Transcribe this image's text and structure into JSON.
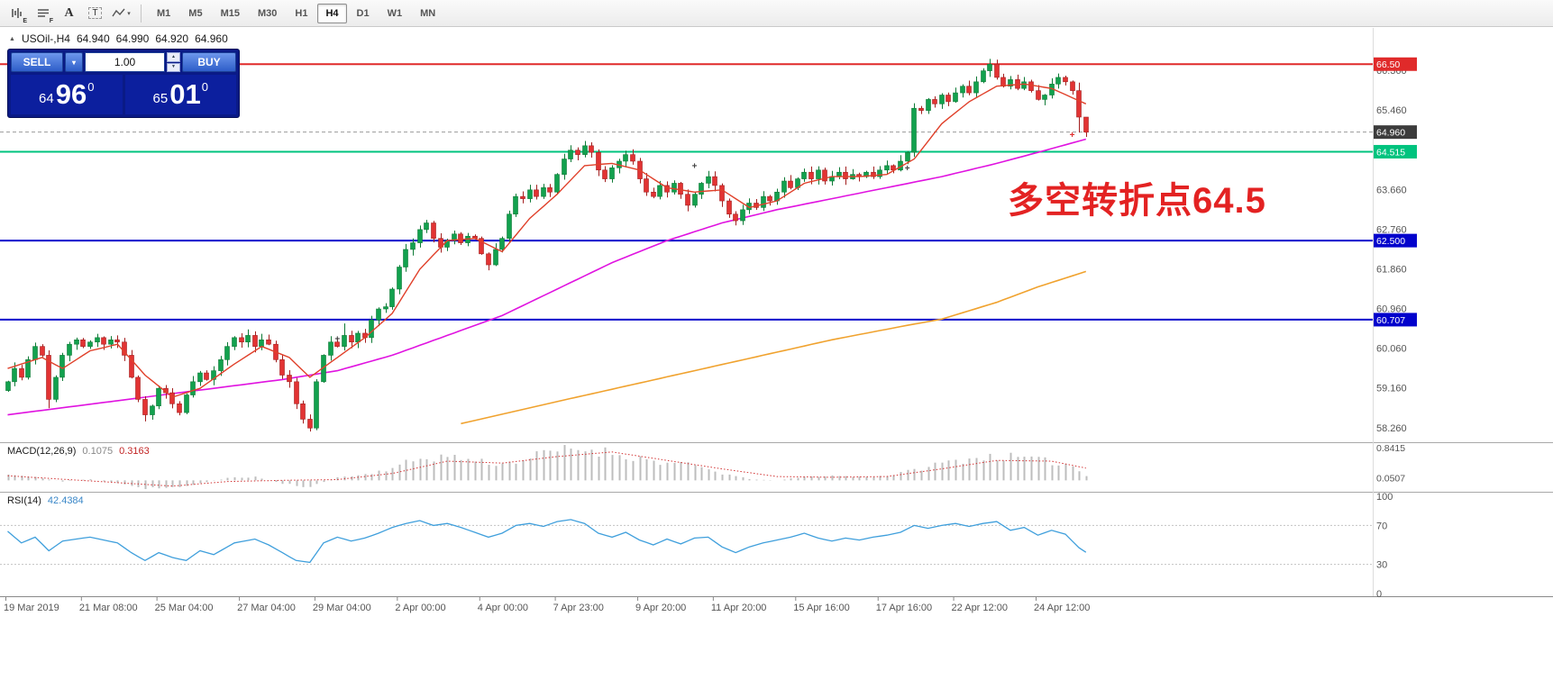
{
  "icons": {
    "collapse": "▲",
    "dropdown": "▾",
    "spin_up": "▲",
    "spin_down": "▼",
    "tool_caret": "▾"
  },
  "toolbar": {
    "tools": [
      {
        "name": "chart-window-icon",
        "kind": "bars",
        "sub": "E"
      },
      {
        "name": "data-window-icon",
        "kind": "lines",
        "sub": "F"
      },
      {
        "name": "text-tool-icon",
        "kind": "glyph",
        "glyph": "A"
      },
      {
        "name": "text-label-tool-icon",
        "kind": "boxed",
        "glyph": "T"
      },
      {
        "name": "drawing-tools-icon",
        "kind": "zigzag"
      }
    ],
    "timeframes": [
      {
        "label": "M1",
        "active": false
      },
      {
        "label": "M5",
        "active": false
      },
      {
        "label": "M15",
        "active": false
      },
      {
        "label": "M30",
        "active": false
      },
      {
        "label": "H1",
        "active": false
      },
      {
        "label": "H4",
        "active": true
      },
      {
        "label": "D1",
        "active": false
      },
      {
        "label": "W1",
        "active": false
      },
      {
        "label": "MN",
        "active": false
      }
    ]
  },
  "chart": {
    "header": {
      "symbol": "USOil-,H4",
      "open": "64.940",
      "high": "64.990",
      "low": "64.920",
      "close": "64.960"
    },
    "annotation": {
      "text": "多空转折点64.5",
      "color": "#e32222"
    },
    "trade_panel": {
      "sell_label": "SELL",
      "buy_label": "BUY",
      "volume": "1.00",
      "sell_price": {
        "small": "64",
        "big": "96",
        "sup": "0"
      },
      "buy_price": {
        "small": "65",
        "big": "01",
        "sup": "0"
      }
    },
    "axis": {
      "labels": [
        "66.360",
        "65.460",
        "63.660",
        "62.760",
        "61.860",
        "60.960",
        "60.060",
        "59.160",
        "58.260"
      ],
      "badges": [
        {
          "text": "66.50",
          "price": 66.5,
          "bg": "#e02a2a",
          "fg": "#ffffff"
        },
        {
          "text": "64.960",
          "price": 64.96,
          "bg": "#3c3c3c",
          "fg": "#ffffff"
        },
        {
          "text": "64.515",
          "price": 64.515,
          "bg": "#00c37e",
          "fg": "#ffffff"
        },
        {
          "text": "62.500",
          "price": 62.5,
          "bg": "#0202cc",
          "fg": "#ffffff"
        },
        {
          "text": "60.707",
          "price": 60.707,
          "bg": "#0202cc",
          "fg": "#ffffff"
        }
      ]
    },
    "hlines": [
      {
        "price": 66.5,
        "color": "#e02a2a",
        "width": 2
      },
      {
        "price": 64.515,
        "color": "#00c37e",
        "width": 2
      },
      {
        "price": 62.5,
        "color": "#0202cc",
        "width": 2
      },
      {
        "price": 60.707,
        "color": "#0202cc",
        "width": 2
      }
    ],
    "current_price": 64.96
  },
  "macd": {
    "label": "MACD(12,26,9)",
    "values": [
      "0.1075",
      "0.3163"
    ],
    "axis_labels": [
      {
        "text": "0.8415",
        "value": 0.8415
      },
      {
        "text": "0.0507",
        "value": 0.0507
      }
    ]
  },
  "rsi": {
    "label": "RSI(14)",
    "value": "42.4384",
    "axis_labels": [
      {
        "text": "100",
        "value": 100
      },
      {
        "text": "70",
        "value": 70
      },
      {
        "text": "30",
        "value": 30
      },
      {
        "text": "0",
        "value": 0
      }
    ],
    "levels": [
      70,
      30
    ]
  },
  "time_axis": [
    {
      "i": 0,
      "text": "19 Mar 2019"
    },
    {
      "i": 11,
      "text": "21 Mar 08:00"
    },
    {
      "i": 22,
      "text": "25 Mar 04:00"
    },
    {
      "i": 34,
      "text": "27 Mar 04:00"
    },
    {
      "i": 45,
      "text": "29 Mar 04:00"
    },
    {
      "i": 57,
      "text": "2 Apr 00:00"
    },
    {
      "i": 69,
      "text": "4 Apr 00:00"
    },
    {
      "i": 80,
      "text": "7 Apr 23:00"
    },
    {
      "i": 92,
      "text": "9 Apr 20:00"
    },
    {
      "i": 103,
      "text": "11 Apr 20:00"
    },
    {
      "i": 115,
      "text": "15 Apr 16:00"
    },
    {
      "i": 127,
      "text": "17 Apr 16:00"
    },
    {
      "i": 138,
      "text": "22 Apr 12:00"
    },
    {
      "i": 150,
      "text": "24 Apr 12:00"
    }
  ],
  "chart_data": {
    "type": "candlestick",
    "symbol": "USOil",
    "timeframe": "H4",
    "price_range": [
      58.0,
      66.75
    ],
    "first_open": 59.1,
    "closes": [
      59.3,
      59.6,
      59.4,
      59.8,
      60.1,
      59.9,
      58.9,
      59.4,
      59.9,
      60.15,
      60.25,
      60.1,
      60.2,
      60.3,
      60.15,
      60.25,
      60.2,
      59.9,
      59.4,
      58.9,
      58.55,
      58.75,
      59.15,
      59.05,
      58.8,
      58.6,
      59.0,
      59.3,
      59.5,
      59.35,
      59.55,
      59.8,
      60.1,
      60.3,
      60.2,
      60.35,
      60.1,
      60.25,
      60.15,
      59.8,
      59.45,
      59.3,
      58.8,
      58.45,
      58.25,
      59.3,
      59.9,
      60.2,
      60.1,
      60.35,
      60.2,
      60.4,
      60.3,
      60.7,
      60.95,
      61.0,
      61.4,
      61.9,
      62.3,
      62.45,
      62.75,
      62.9,
      62.55,
      62.35,
      62.5,
      62.65,
      62.45,
      62.6,
      62.55,
      62.2,
      61.95,
      62.3,
      62.55,
      63.1,
      63.5,
      63.45,
      63.65,
      63.5,
      63.7,
      63.6,
      64.0,
      64.35,
      64.55,
      64.45,
      64.65,
      64.5,
      64.1,
      63.9,
      64.15,
      64.3,
      64.45,
      64.3,
      63.9,
      63.6,
      63.5,
      63.75,
      63.6,
      63.8,
      63.55,
      63.3,
      63.55,
      63.8,
      63.95,
      63.75,
      63.4,
      63.1,
      62.95,
      63.2,
      63.35,
      63.25,
      63.5,
      63.4,
      63.6,
      63.85,
      63.7,
      63.9,
      64.05,
      63.9,
      64.1,
      63.85,
      63.95,
      64.05,
      63.9,
      64.0,
      63.95,
      64.05,
      63.95,
      64.1,
      64.2,
      64.1,
      64.3,
      64.5,
      65.5,
      65.45,
      65.7,
      65.6,
      65.8,
      65.65,
      65.85,
      66.0,
      65.85,
      66.1,
      66.35,
      66.5,
      66.2,
      66.0,
      66.15,
      65.95,
      66.1,
      65.9,
      65.7,
      65.8,
      66.05,
      66.2,
      66.1,
      65.9,
      65.3,
      64.96
    ],
    "wick_overrides": {
      "6": [
        null,
        58.7
      ],
      "20": [
        null,
        58.4
      ],
      "44": [
        null,
        58.17
      ],
      "49": [
        60.62,
        null
      ],
      "61": [
        62.97,
        null
      ],
      "84": [
        64.76,
        null
      ],
      "143": [
        66.62,
        null
      ],
      "156": [
        66.08,
        64.95
      ],
      "157": [
        65.1,
        64.85
      ]
    },
    "ma_fast": {
      "color": "#e0402a",
      "anchors": [
        [
          0,
          59.6
        ],
        [
          5,
          59.85
        ],
        [
          8,
          59.6
        ],
        [
          12,
          60.0
        ],
        [
          16,
          60.15
        ],
        [
          20,
          59.45
        ],
        [
          24,
          58.95
        ],
        [
          28,
          59.15
        ],
        [
          33,
          59.7
        ],
        [
          37,
          60.1
        ],
        [
          41,
          59.85
        ],
        [
          44,
          59.4
        ],
        [
          48,
          59.85
        ],
        [
          52,
          60.3
        ],
        [
          56,
          60.85
        ],
        [
          60,
          61.85
        ],
        [
          64,
          62.5
        ],
        [
          68,
          62.55
        ],
        [
          72,
          62.25
        ],
        [
          76,
          63.0
        ],
        [
          80,
          63.55
        ],
        [
          84,
          64.2
        ],
        [
          88,
          64.25
        ],
        [
          92,
          64.1
        ],
        [
          96,
          63.7
        ],
        [
          100,
          63.6
        ],
        [
          104,
          63.65
        ],
        [
          108,
          63.25
        ],
        [
          112,
          63.4
        ],
        [
          116,
          63.8
        ],
        [
          120,
          63.95
        ],
        [
          124,
          63.95
        ],
        [
          128,
          64.0
        ],
        [
          132,
          64.35
        ],
        [
          136,
          65.15
        ],
        [
          140,
          65.65
        ],
        [
          144,
          66.0
        ],
        [
          148,
          66.05
        ],
        [
          152,
          65.95
        ],
        [
          157,
          65.6
        ]
      ]
    },
    "ma_mid": {
      "color": "#e013e0",
      "anchors": [
        [
          0,
          58.55
        ],
        [
          10,
          58.75
        ],
        [
          20,
          58.95
        ],
        [
          30,
          59.15
        ],
        [
          40,
          59.35
        ],
        [
          48,
          59.55
        ],
        [
          56,
          59.9
        ],
        [
          64,
          60.35
        ],
        [
          72,
          60.8
        ],
        [
          80,
          61.4
        ],
        [
          88,
          62.0
        ],
        [
          96,
          62.5
        ],
        [
          104,
          62.9
        ],
        [
          112,
          63.2
        ],
        [
          120,
          63.45
        ],
        [
          128,
          63.7
        ],
        [
          136,
          63.95
        ],
        [
          144,
          64.25
        ],
        [
          150,
          64.5
        ],
        [
          157,
          64.8
        ]
      ]
    },
    "ma_slow": {
      "color": "#f0a22e",
      "anchors": [
        [
          66,
          58.35
        ],
        [
          80,
          58.85
        ],
        [
          90,
          59.2
        ],
        [
          100,
          59.55
        ],
        [
          110,
          59.9
        ],
        [
          120,
          60.25
        ],
        [
          130,
          60.55
        ],
        [
          136,
          60.72
        ],
        [
          144,
          61.1
        ],
        [
          150,
          61.45
        ],
        [
          157,
          61.8
        ]
      ]
    },
    "macd_hist_anchors": [
      [
        0,
        0.15
      ],
      [
        4,
        0.08
      ],
      [
        8,
        -0.03
      ],
      [
        12,
        0.03
      ],
      [
        16,
        -0.08
      ],
      [
        20,
        -0.22
      ],
      [
        24,
        -0.18
      ],
      [
        28,
        -0.08
      ],
      [
        32,
        0.06
      ],
      [
        36,
        0.09
      ],
      [
        40,
        -0.08
      ],
      [
        44,
        -0.18
      ],
      [
        48,
        0.08
      ],
      [
        52,
        0.15
      ],
      [
        56,
        0.33
      ],
      [
        60,
        0.57
      ],
      [
        64,
        0.63
      ],
      [
        68,
        0.52
      ],
      [
        72,
        0.42
      ],
      [
        76,
        0.6
      ],
      [
        80,
        0.78
      ],
      [
        84,
        0.82
      ],
      [
        88,
        0.72
      ],
      [
        92,
        0.57
      ],
      [
        96,
        0.45
      ],
      [
        100,
        0.38
      ],
      [
        104,
        0.18
      ],
      [
        108,
        0.03
      ],
      [
        112,
        0.0
      ],
      [
        116,
        0.09
      ],
      [
        120,
        0.12
      ],
      [
        124,
        0.09
      ],
      [
        128,
        0.12
      ],
      [
        132,
        0.27
      ],
      [
        136,
        0.45
      ],
      [
        140,
        0.57
      ],
      [
        144,
        0.63
      ],
      [
        148,
        0.57
      ],
      [
        152,
        0.48
      ],
      [
        155,
        0.38
      ],
      [
        157,
        0.11
      ]
    ],
    "macd_signal_anchors": [
      [
        0,
        0.12
      ],
      [
        8,
        0.03
      ],
      [
        16,
        -0.06
      ],
      [
        24,
        -0.15
      ],
      [
        32,
        -0.03
      ],
      [
        40,
        0.0
      ],
      [
        48,
        0.02
      ],
      [
        56,
        0.18
      ],
      [
        64,
        0.5
      ],
      [
        72,
        0.45
      ],
      [
        80,
        0.62
      ],
      [
        88,
        0.74
      ],
      [
        96,
        0.52
      ],
      [
        104,
        0.3
      ],
      [
        112,
        0.1
      ],
      [
        120,
        0.08
      ],
      [
        128,
        0.1
      ],
      [
        136,
        0.3
      ],
      [
        144,
        0.52
      ],
      [
        152,
        0.5
      ],
      [
        157,
        0.32
      ]
    ],
    "rsi_anchors": [
      [
        0,
        64
      ],
      [
        2,
        52
      ],
      [
        4,
        58
      ],
      [
        6,
        44
      ],
      [
        8,
        54
      ],
      [
        12,
        58
      ],
      [
        16,
        52
      ],
      [
        18,
        42
      ],
      [
        20,
        34
      ],
      [
        22,
        42
      ],
      [
        24,
        37
      ],
      [
        26,
        34
      ],
      [
        28,
        44
      ],
      [
        30,
        40
      ],
      [
        33,
        52
      ],
      [
        36,
        56
      ],
      [
        38,
        50
      ],
      [
        40,
        42
      ],
      [
        42,
        34
      ],
      [
        44,
        32
      ],
      [
        46,
        52
      ],
      [
        48,
        58
      ],
      [
        50,
        54
      ],
      [
        52,
        57
      ],
      [
        54,
        62
      ],
      [
        56,
        68
      ],
      [
        58,
        72
      ],
      [
        60,
        75
      ],
      [
        62,
        70
      ],
      [
        64,
        72
      ],
      [
        66,
        68
      ],
      [
        68,
        63
      ],
      [
        70,
        58
      ],
      [
        72,
        62
      ],
      [
        74,
        70
      ],
      [
        76,
        72
      ],
      [
        78,
        69
      ],
      [
        80,
        74
      ],
      [
        82,
        76
      ],
      [
        84,
        72
      ],
      [
        86,
        62
      ],
      [
        88,
        58
      ],
      [
        90,
        63
      ],
      [
        92,
        55
      ],
      [
        94,
        50
      ],
      [
        96,
        56
      ],
      [
        98,
        51
      ],
      [
        100,
        57
      ],
      [
        102,
        58
      ],
      [
        104,
        48
      ],
      [
        106,
        42
      ],
      [
        108,
        48
      ],
      [
        110,
        52
      ],
      [
        112,
        55
      ],
      [
        114,
        58
      ],
      [
        116,
        62
      ],
      [
        118,
        57
      ],
      [
        120,
        54
      ],
      [
        122,
        57
      ],
      [
        124,
        55
      ],
      [
        126,
        58
      ],
      [
        128,
        60
      ],
      [
        130,
        63
      ],
      [
        132,
        70
      ],
      [
        134,
        67
      ],
      [
        136,
        70
      ],
      [
        138,
        72
      ],
      [
        140,
        69
      ],
      [
        142,
        72
      ],
      [
        144,
        74
      ],
      [
        146,
        65
      ],
      [
        148,
        68
      ],
      [
        150,
        60
      ],
      [
        152,
        65
      ],
      [
        154,
        61
      ],
      [
        156,
        47
      ],
      [
        157,
        42.4
      ]
    ],
    "markers": [
      {
        "i": 48,
        "price": 60.28,
        "color": "#444444"
      },
      {
        "i": 100,
        "price": 64.2,
        "color": "#444444"
      },
      {
        "i": 131,
        "price": 64.15,
        "color": "#444444"
      },
      {
        "i": 155,
        "price": 64.9,
        "color": "#e03030"
      },
      {
        "i": 157,
        "price": 64.99,
        "color": "#e03030"
      }
    ]
  }
}
